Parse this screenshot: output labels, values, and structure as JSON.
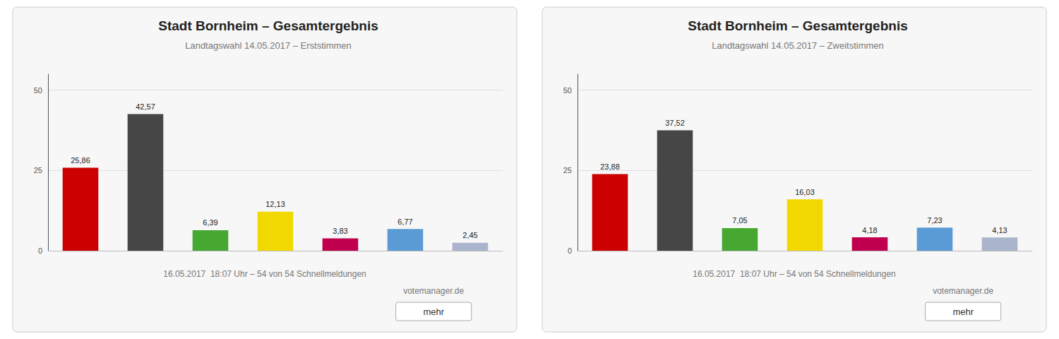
{
  "chart_data": [
    {
      "type": "bar",
      "title": "Stadt Bornheim – Gesamtergebnis",
      "subtitle": "Landtagswahl 14.05.2017 – Erststimmen",
      "categories": [
        null,
        null,
        null,
        null,
        null,
        null,
        null
      ],
      "values": [
        25.86,
        42.57,
        6.39,
        12.13,
        3.83,
        6.77,
        2.45
      ],
      "value_labels": [
        "25,86",
        "42,57",
        "6,39",
        "12,13",
        "3,83",
        "6,77",
        "2,45"
      ],
      "colors": [
        "#cc0000",
        "#464646",
        "#46a832",
        "#f0d800",
        "#c0004e",
        "#5b9bd5",
        "#aab4cc"
      ],
      "ylim": [
        0,
        55
      ],
      "yticks": [
        0,
        25,
        50
      ],
      "grid": true,
      "data_labels": true,
      "tick_labels": "y",
      "annotations": [
        "16.05.2017  18:07 Uhr – 54 von 54 Schnellmeldungen",
        "votemanager.de",
        "mehr"
      ]
    },
    {
      "type": "bar",
      "title": "Stadt Bornheim – Gesamtergebnis",
      "subtitle": "Landtagswahl 14.05.2017 – Zweitstimmen",
      "categories": [
        null,
        null,
        null,
        null,
        null,
        null,
        null
      ],
      "values": [
        23.88,
        37.52,
        7.05,
        16.03,
        4.18,
        7.23,
        4.13
      ],
      "value_labels": [
        "23,88",
        "37,52",
        "7,05",
        "16,03",
        "4,18",
        "7,23",
        "4,13"
      ],
      "colors": [
        "#cc0000",
        "#464646",
        "#46a832",
        "#f0d800",
        "#c0004e",
        "#5b9bd5",
        "#aab4cc"
      ],
      "ylim": [
        0,
        55
      ],
      "yticks": [
        0,
        25,
        50
      ],
      "grid": true,
      "data_labels": true,
      "tick_labels": "y",
      "annotations": [
        "16.05.2017  18:07 Uhr – 54 von 54 Schnellmeldungen",
        "votemanager.de",
        "mehr"
      ]
    }
  ]
}
